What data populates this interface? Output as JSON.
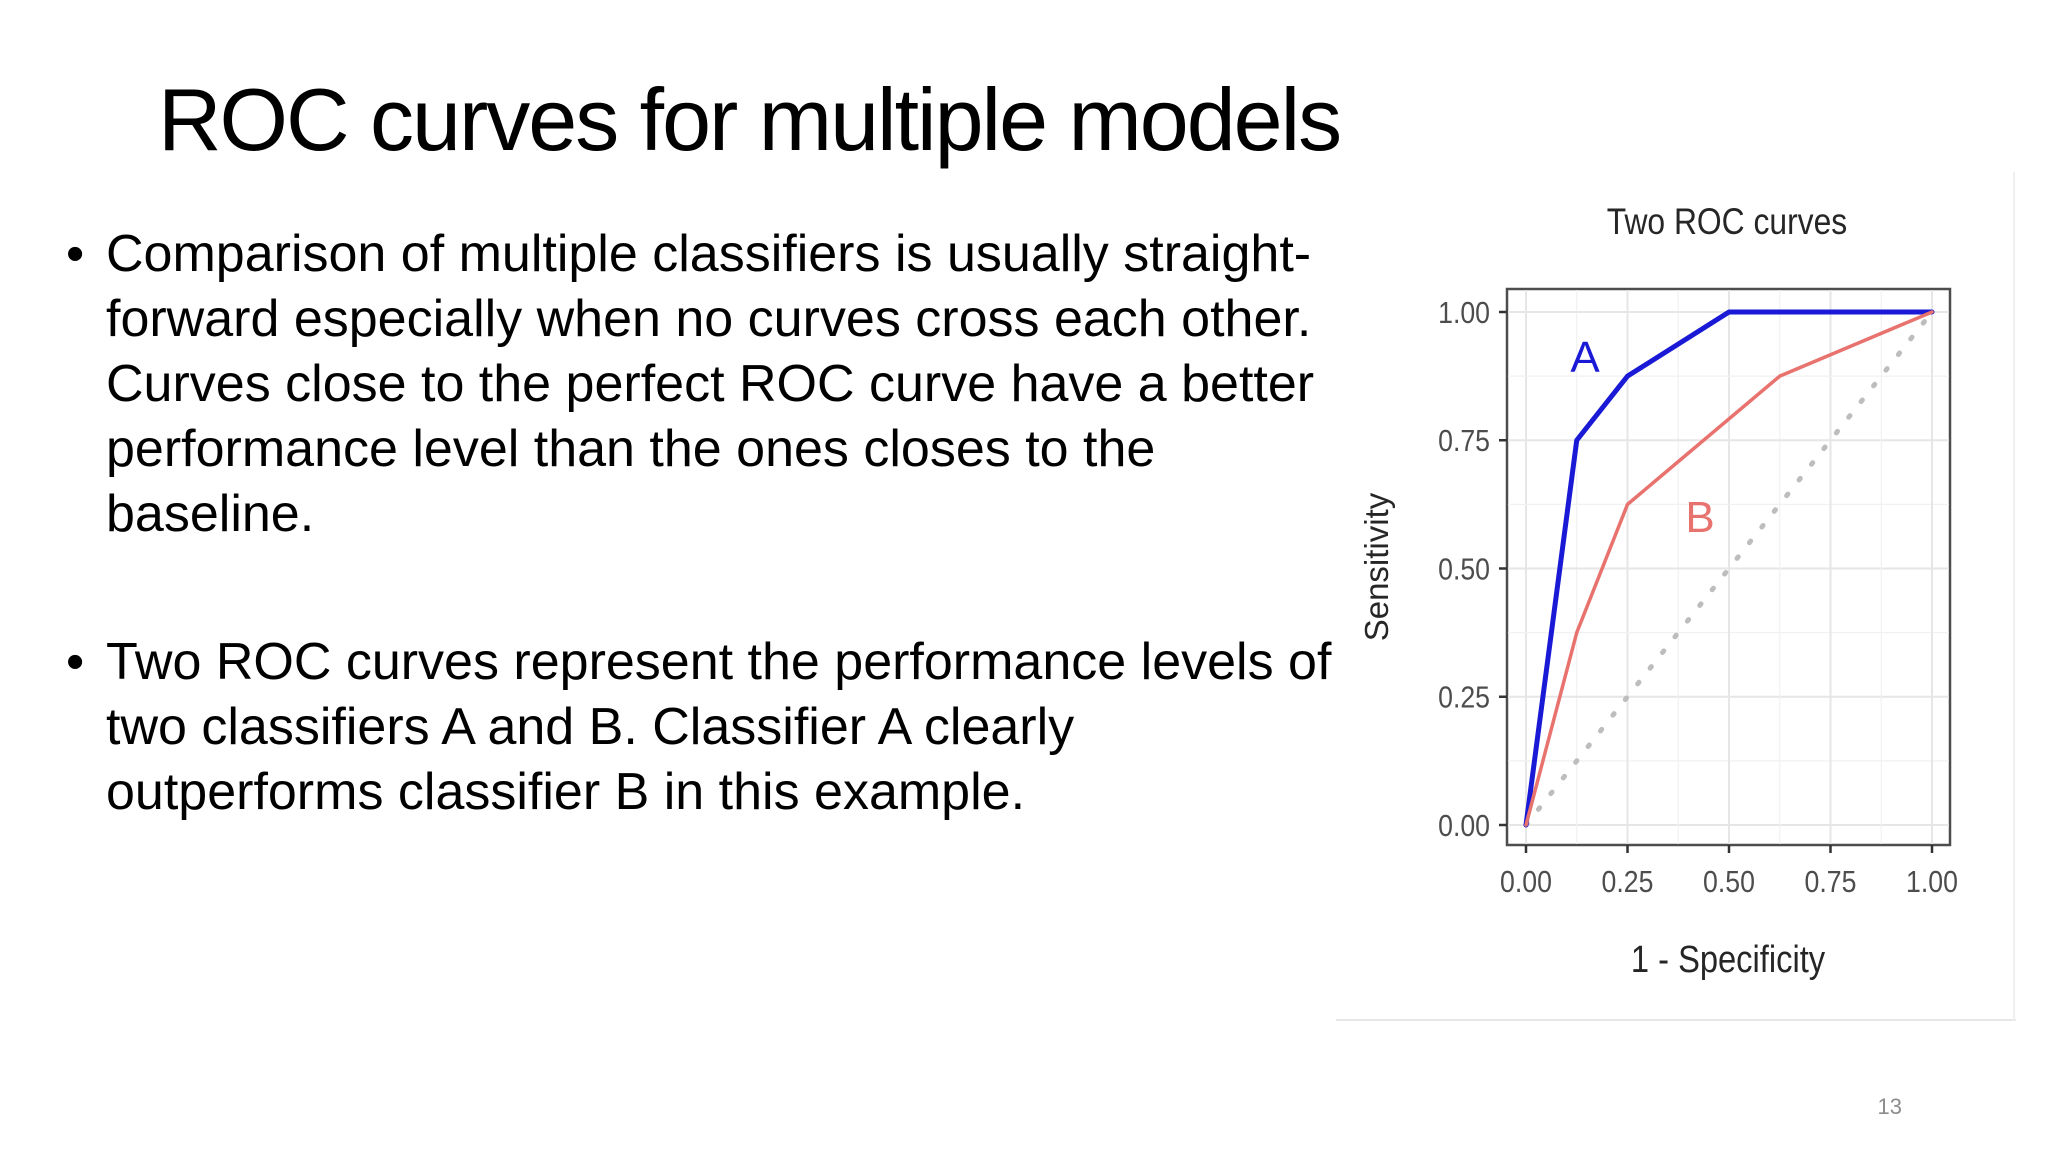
{
  "slide": {
    "title": "ROC curves for multiple models",
    "bullets": [
      "Comparison of multiple classifiers is usually straight-forward especially when no curves cross each other. Curves close to the perfect ROC curve have a better performance level than the ones closes to the baseline.",
      "Two ROC curves represent the performance levels of two classifiers A and B. Classifier A clearly outperforms classifier B in this example."
    ],
    "page_number": "13"
  },
  "chart_data": {
    "type": "line",
    "title": "Two ROC curves",
    "xlabel": "1 - Specificity",
    "ylabel": "Sensitivity",
    "xlim": [
      0,
      1
    ],
    "ylim": [
      0,
      1
    ],
    "xticks": [
      "0.00",
      "0.25",
      "0.50",
      "0.75",
      "1.00"
    ],
    "yticks": [
      "0.00",
      "0.25",
      "0.50",
      "0.75",
      "1.00"
    ],
    "grid": true,
    "series": [
      {
        "name": "A",
        "color": "#1a1ad6",
        "x": [
          0,
          0.125,
          0.25,
          0.5,
          1.0
        ],
        "y": [
          0,
          0.75,
          0.875,
          1.0,
          1.0
        ]
      },
      {
        "name": "B",
        "color": "#e8726e",
        "x": [
          0,
          0.125,
          0.25,
          0.625,
          1.0
        ],
        "y": [
          0,
          0.375,
          0.625,
          0.875,
          1.0
        ]
      }
    ],
    "baseline": {
      "style": "dotted",
      "color": "#bdbdbd",
      "x": [
        0,
        1
      ],
      "y": [
        0,
        1
      ]
    }
  }
}
